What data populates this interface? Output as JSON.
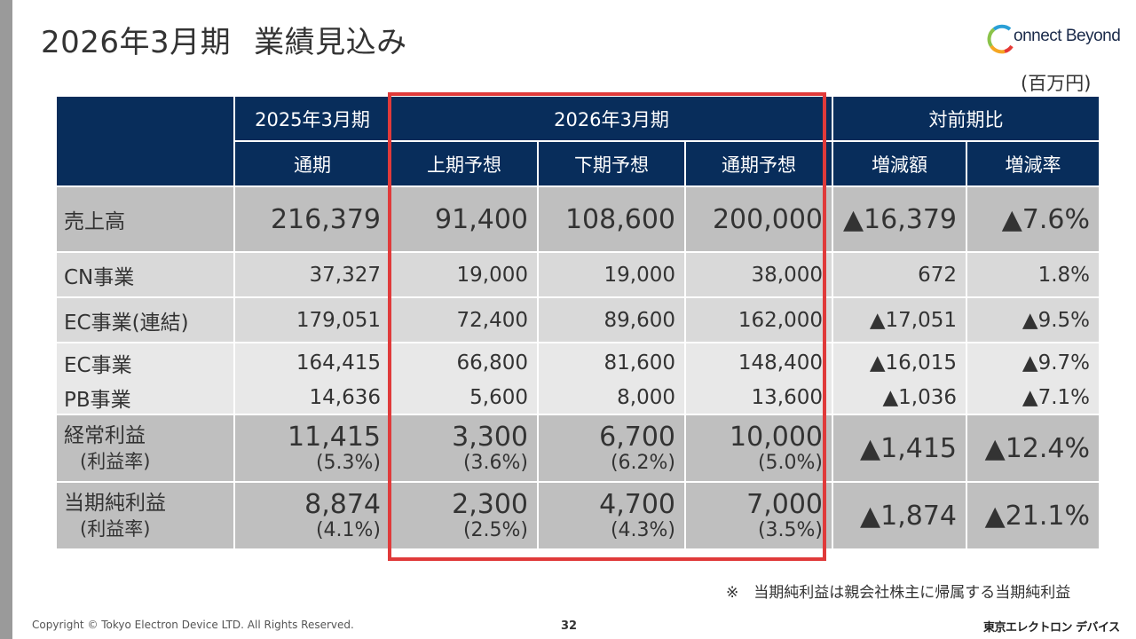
{
  "title": {
    "part1": "2026年3月期",
    "part2": "業績見込み"
  },
  "logo": {
    "text": "onnect Beyond",
    "colors": [
      "#2a9fd6",
      "#8bc34a",
      "#f5a623",
      "#e53935"
    ]
  },
  "unit": "(百万円)",
  "table": {
    "header": {
      "col_fy2025": "2025年3月期",
      "col_fy2026": "2026年3月期",
      "col_yoy": "対前期比",
      "full_year": "通期",
      "h1_forecast": "上期予想",
      "h2_forecast": "下期予想",
      "full_forecast": "通期予想",
      "change_amount": "増減額",
      "change_rate": "増減率"
    },
    "rows": [
      {
        "label": "売上高",
        "fy2025": "216,379",
        "h1": "91,400",
        "h2": "108,600",
        "full": "200,000",
        "amount": "▲16,379",
        "rate": "▲7.6%"
      },
      {
        "label": "CN事業",
        "fy2025": "37,327",
        "h1": "19,000",
        "h2": "19,000",
        "full": "38,000",
        "amount": "672",
        "rate": "1.8%"
      },
      {
        "label": "EC事業(連結)",
        "fy2025": "179,051",
        "h1": "72,400",
        "h2": "89,600",
        "full": "162,000",
        "amount": "▲17,051",
        "rate": "▲9.5%"
      },
      {
        "label": "EC事業",
        "fy2025": "164,415",
        "h1": "66,800",
        "h2": "81,600",
        "full": "148,400",
        "amount": "▲16,015",
        "rate": "▲9.7%"
      },
      {
        "label": "PB事業",
        "fy2025": "14,636",
        "h1": "5,600",
        "h2": "8,000",
        "full": "13,600",
        "amount": "▲1,036",
        "rate": "▲7.1%"
      },
      {
        "label": "経常利益",
        "sublabel": "(利益率)",
        "fy2025": "11,415",
        "fy2025_pct": "(5.3%)",
        "h1": "3,300",
        "h1_pct": "(3.6%)",
        "h2": "6,700",
        "h2_pct": "(6.2%)",
        "full": "10,000",
        "full_pct": "(5.0%)",
        "amount": "▲1,415",
        "rate": "▲12.4%"
      },
      {
        "label": "当期純利益",
        "sublabel": "(利益率)",
        "fy2025": "8,874",
        "fy2025_pct": "(4.1%)",
        "h1": "2,300",
        "h1_pct": "(2.5%)",
        "h2": "4,700",
        "h2_pct": "(4.3%)",
        "full": "7,000",
        "full_pct": "(3.5%)",
        "amount": "▲1,874",
        "rate": "▲21.1%"
      }
    ]
  },
  "footnote": "※　当期純利益は親会社株主に帰属する当期純利益",
  "copyright": "Copyright © Tokyo Electron Device LTD. All Rights Reserved.",
  "page_number": "32",
  "company": "東京エレクトロン デバイス",
  "colors": {
    "header_bg": "#082d5b",
    "highlight_border": "#e03a3a",
    "row_dark": "#bfbfbf",
    "row_light": "#d9d9d9"
  }
}
